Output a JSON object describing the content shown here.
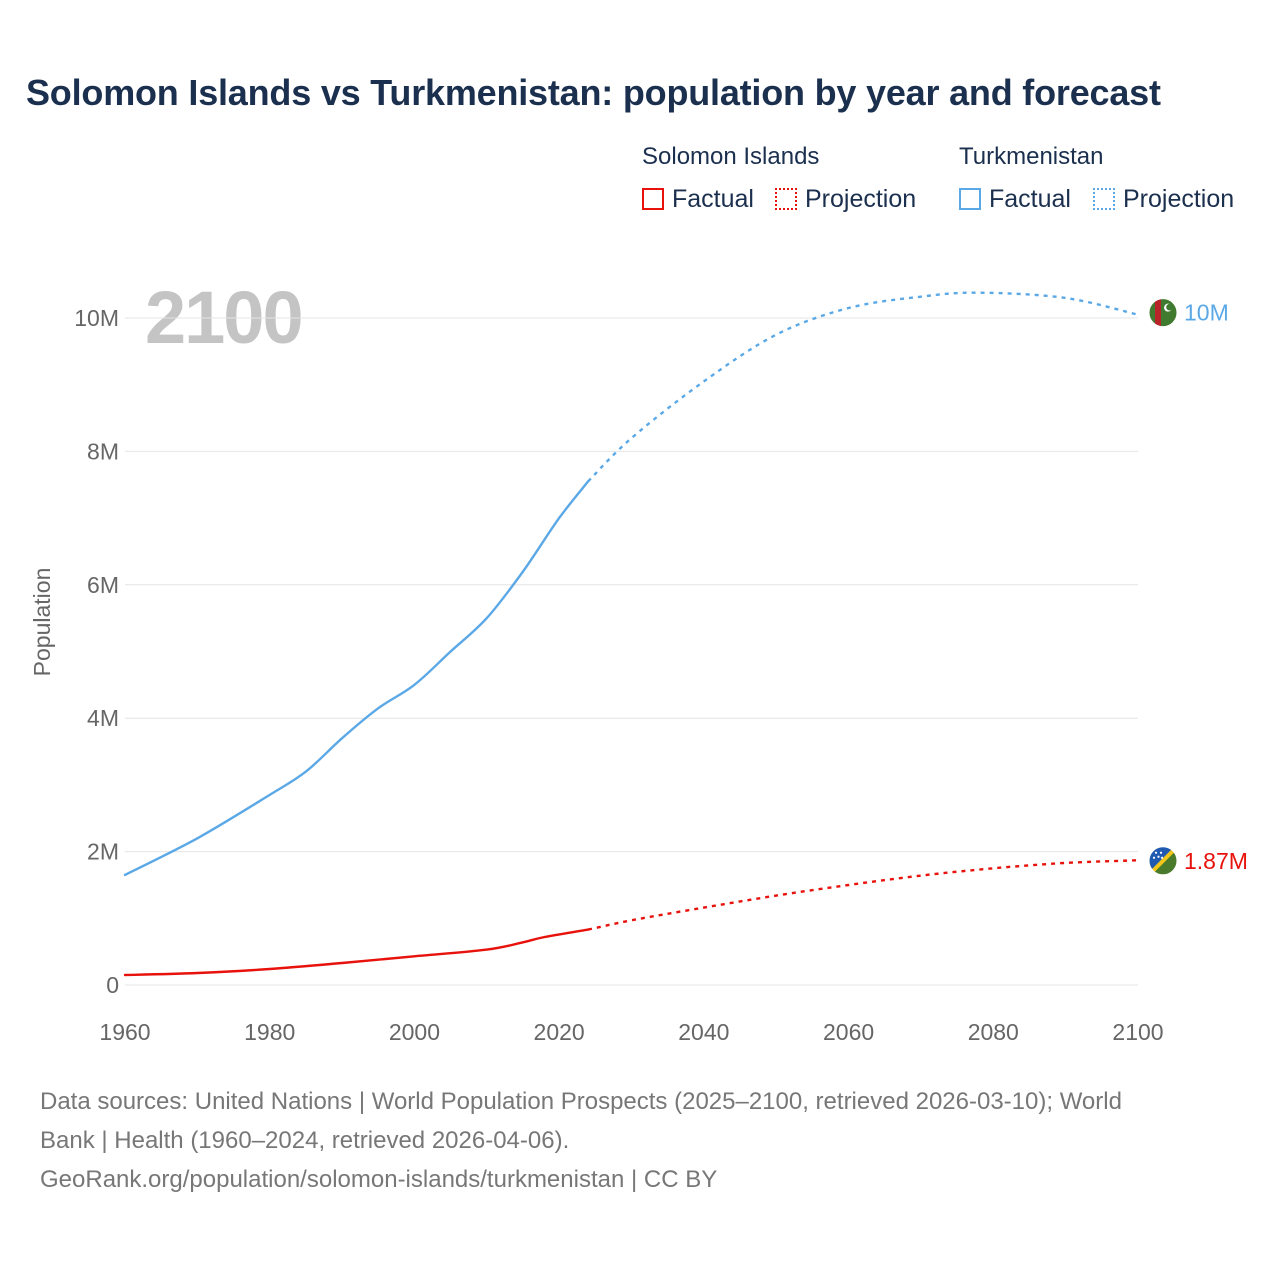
{
  "chart_data": {
    "type": "line",
    "title": "Solomon Islands vs Turkmenistan: population by year and forecast",
    "ylabel": "Population",
    "xlabel": "",
    "xlim": [
      1960,
      2100
    ],
    "ylim": [
      0,
      10500000
    ],
    "x_ticks": [
      1960,
      1980,
      2000,
      2020,
      2040,
      2060,
      2080,
      2100
    ],
    "y_ticks": [
      {
        "value": 0,
        "label": "0"
      },
      {
        "value": 2000000,
        "label": "2M"
      },
      {
        "value": 4000000,
        "label": "4M"
      },
      {
        "value": 6000000,
        "label": "6M"
      },
      {
        "value": 8000000,
        "label": "8M"
      },
      {
        "value": 10000000,
        "label": "10M"
      }
    ],
    "year_overlay": "2100",
    "legend": {
      "groups": [
        {
          "name": "Solomon Islands",
          "factual": "Factual",
          "projection": "Projection"
        },
        {
          "name": "Turkmenistan",
          "factual": "Factual",
          "projection": "Projection"
        }
      ]
    },
    "series": [
      {
        "name": "Solomon Islands",
        "color": "#e8120c",
        "end_label": "1.87M",
        "factual": [
          [
            1960,
            150000
          ],
          [
            1970,
            180000
          ],
          [
            1980,
            240000
          ],
          [
            1990,
            330000
          ],
          [
            2000,
            430000
          ],
          [
            2010,
            530000
          ],
          [
            2015,
            640000
          ],
          [
            2018,
            720000
          ],
          [
            2024,
            830000
          ]
        ],
        "projection": [
          [
            2024,
            830000
          ],
          [
            2030,
            970000
          ],
          [
            2040,
            1160000
          ],
          [
            2050,
            1340000
          ],
          [
            2060,
            1500000
          ],
          [
            2070,
            1640000
          ],
          [
            2080,
            1750000
          ],
          [
            2090,
            1830000
          ],
          [
            2100,
            1870000
          ]
        ]
      },
      {
        "name": "Turkmenistan",
        "color": "#5ba8e6",
        "end_label": "10M",
        "factual": [
          [
            1960,
            1650000
          ],
          [
            1970,
            2200000
          ],
          [
            1980,
            2850000
          ],
          [
            1985,
            3200000
          ],
          [
            1990,
            3700000
          ],
          [
            1995,
            4150000
          ],
          [
            2000,
            4500000
          ],
          [
            2005,
            5000000
          ],
          [
            2010,
            5500000
          ],
          [
            2015,
            6200000
          ],
          [
            2020,
            7000000
          ],
          [
            2024,
            7550000
          ]
        ],
        "projection": [
          [
            2024,
            7550000
          ],
          [
            2030,
            8200000
          ],
          [
            2040,
            9050000
          ],
          [
            2050,
            9750000
          ],
          [
            2060,
            10150000
          ],
          [
            2070,
            10320000
          ],
          [
            2078,
            10380000
          ],
          [
            2090,
            10300000
          ],
          [
            2100,
            10050000
          ]
        ]
      }
    ]
  },
  "footer": {
    "line1": "Data sources: United Nations | World Population Prospects (2025–2100, retrieved 2026-03-10); World",
    "line2": "Bank | Health (1960–2024, retrieved 2026-04-06).",
    "line3": "GeoRank.org/population/solomon-islands/turkmenistan | CC BY"
  }
}
